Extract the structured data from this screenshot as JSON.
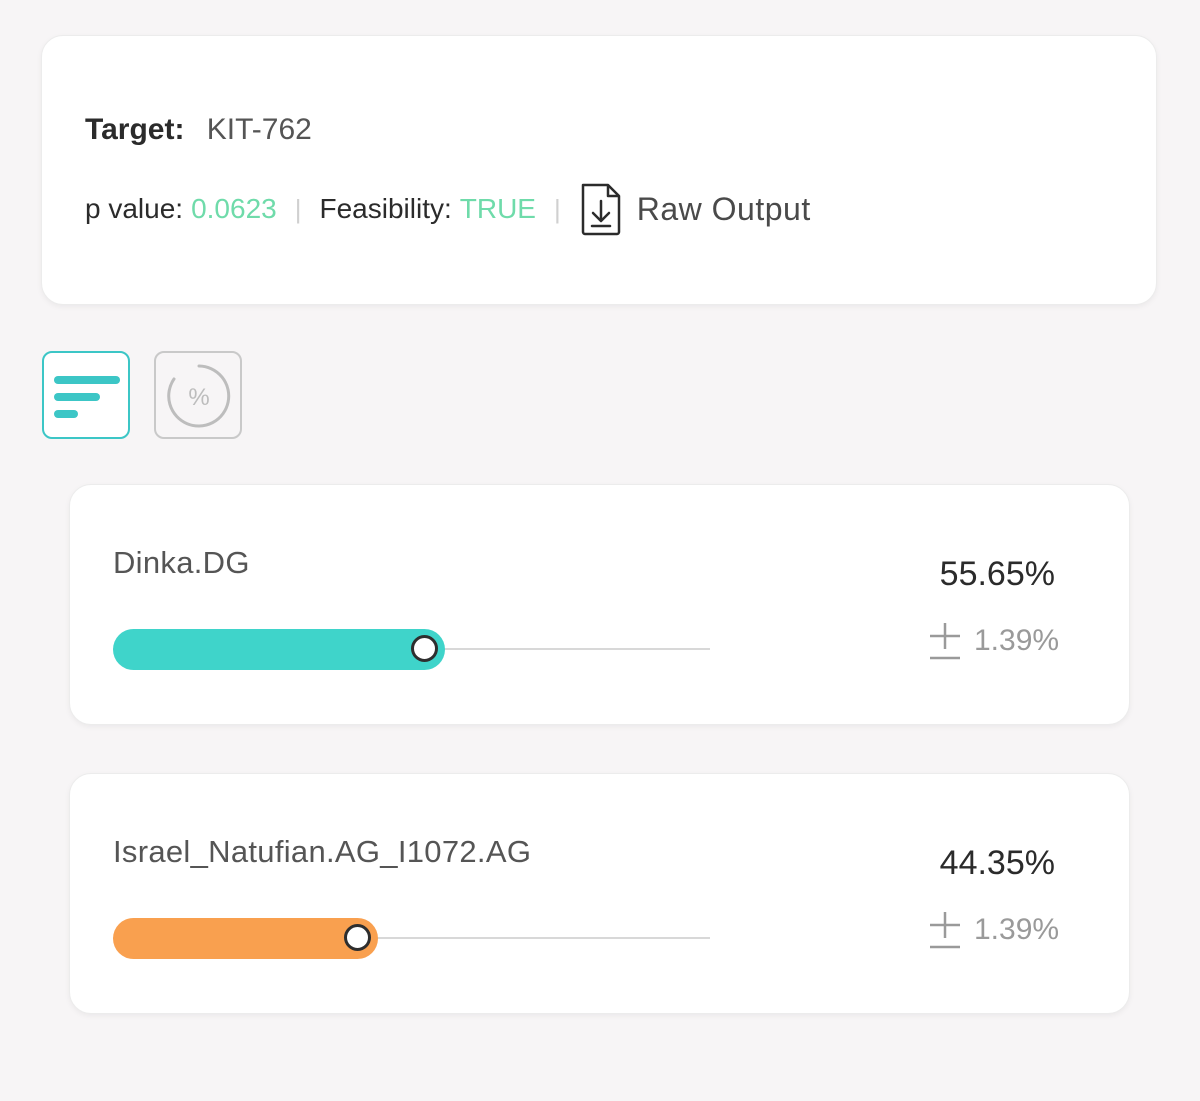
{
  "header": {
    "target_label": "Target:",
    "target_value": "KIT-762",
    "p_value_label": "p value:",
    "p_value": "0.0623",
    "feasibility_label": "Feasibility:",
    "feasibility_value": "TRUE",
    "separator": "|",
    "raw_output_label": "Raw Output",
    "raw_output_icon": "file-download-icon",
    "value_color": "#6fdbaa"
  },
  "toggles": [
    {
      "icon": "bar-list-icon",
      "active": true,
      "accent": "#3cc6c6"
    },
    {
      "icon": "percent-circle-icon",
      "active": false
    }
  ],
  "results": [
    {
      "name": "Dinka.DG",
      "percent": "55.65%",
      "error": "1.39%",
      "fraction": 0.5565,
      "color": "#3fd4ca"
    },
    {
      "name": "Israel_Natufian.AG_I1072.AG",
      "percent": "44.35%",
      "error": "1.39%",
      "fraction": 0.4435,
      "color": "#f9a04f"
    }
  ]
}
